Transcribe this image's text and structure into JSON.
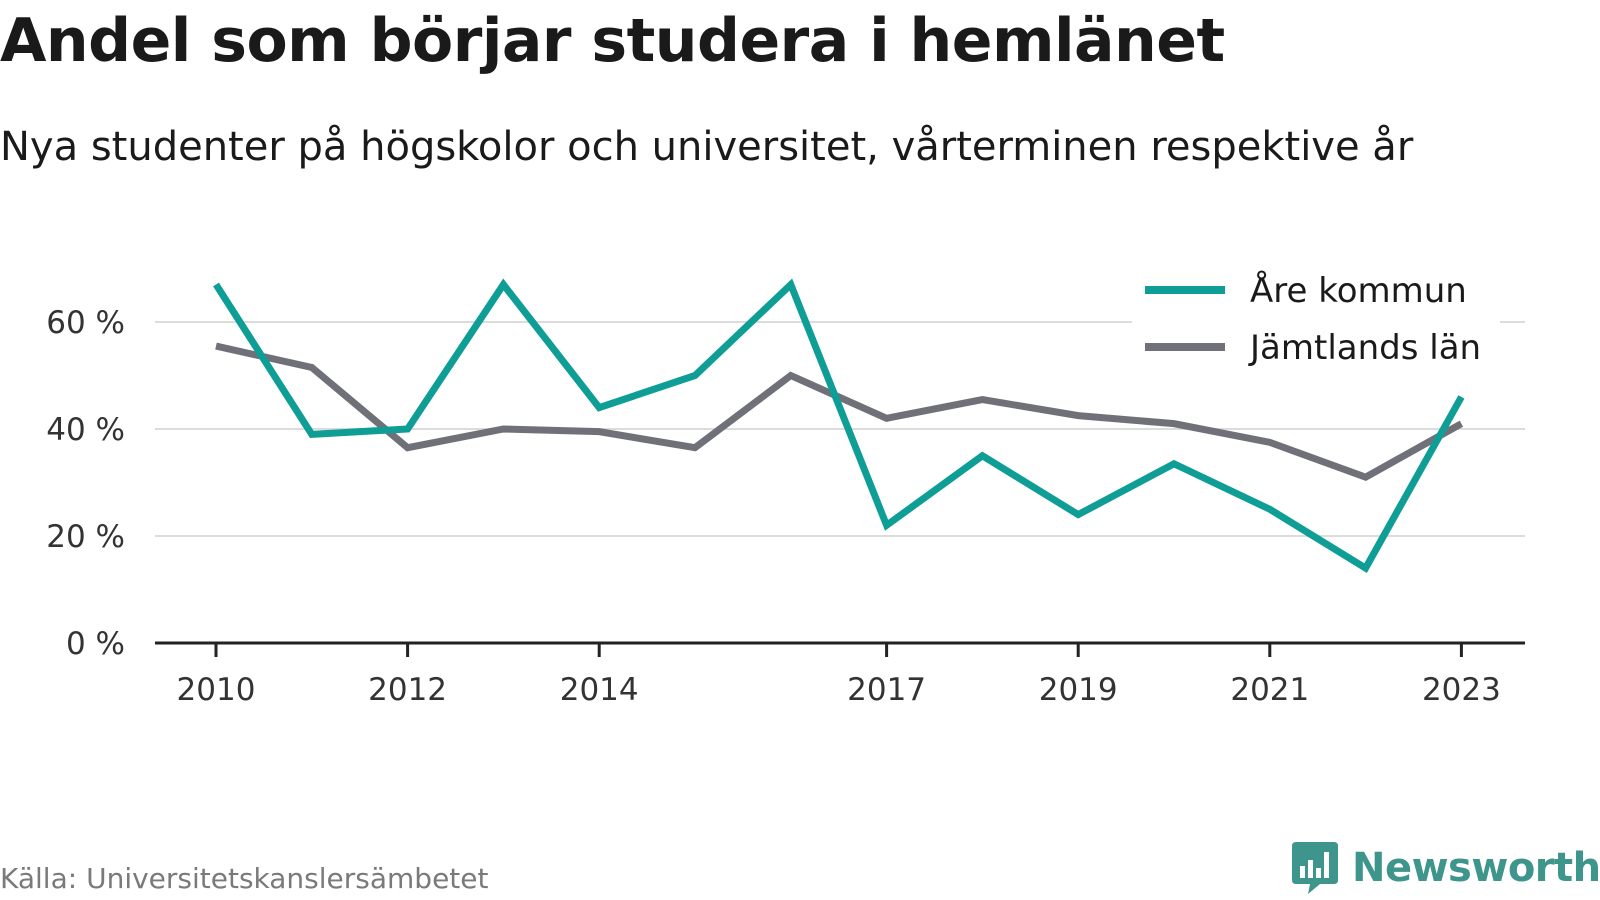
{
  "title": "Andel som börjar studera i hemlänet",
  "subtitle": "Nya studenter på högskolor och universitet, vårterminen respektive år",
  "source": "Källa: Universitetskanslersämbetet",
  "brand": "Newsworthy",
  "chart_data": {
    "type": "line",
    "x": [
      2010,
      2011,
      2012,
      2013,
      2014,
      2015,
      2016,
      2017,
      2018,
      2019,
      2020,
      2021,
      2022,
      2023
    ],
    "x_tick_labels": [
      "2010",
      "2012",
      "2014",
      "2017",
      "2019",
      "2021",
      "2023"
    ],
    "y_ticks": [
      0,
      20,
      40,
      60
    ],
    "y_tick_labels": [
      "0 %",
      "20 %",
      "40 %",
      "60 %"
    ],
    "ylim": [
      0,
      70
    ],
    "grid": true,
    "legend_position": "top-right",
    "series": [
      {
        "name": "Åre kommun",
        "color": "#0f9e96",
        "values": [
          67,
          39,
          40,
          67,
          44,
          50,
          67,
          22,
          35,
          24,
          33.5,
          25,
          14,
          46
        ]
      },
      {
        "name": "Jämtlands län",
        "color": "#707078",
        "values": [
          55.5,
          51.5,
          36.5,
          40,
          39.5,
          36.5,
          50,
          42,
          45.5,
          42.5,
          41,
          37.5,
          31,
          41
        ]
      }
    ]
  }
}
